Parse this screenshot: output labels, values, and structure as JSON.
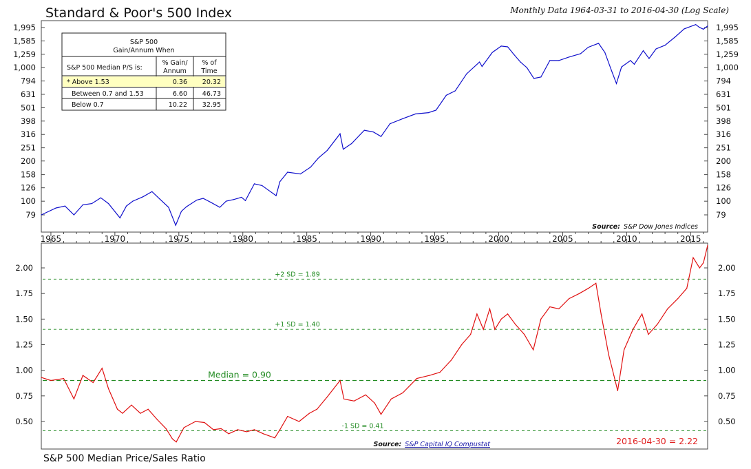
{
  "header": {
    "title": "Standard & Poor's 500 Index",
    "subtitle": "Monthly Data 1964-03-31 to 2016-04-30 (Log Scale)"
  },
  "table": {
    "title_line1": "S&P 500",
    "title_line2": "Gain/Annum When",
    "row_header": "S&P 500 Median P/S is:",
    "col1_line1": "% Gain/",
    "col1_line2": "Annum",
    "col2_line1": "% of",
    "col2_line2": "Time",
    "rows": [
      {
        "label": "* Above 1.53",
        "gain": "0.36",
        "time": "20.32",
        "highlight_color": "#ffffc0"
      },
      {
        "label": "Between 0.7 and 1.53",
        "gain": "6.60",
        "time": "46.73",
        "highlight_color": ""
      },
      {
        "label": "Below 0.7",
        "gain": "10.22",
        "time": "32.95",
        "highlight_color": ""
      }
    ]
  },
  "top_source": {
    "prefix": "Source:",
    "text": "S&P Dow Jones Indices"
  },
  "bottom_source": {
    "prefix": "Source:",
    "text": "S&P Capital IQ Compustat"
  },
  "bottom_title": "S&P 500 Median Price/Sales Ratio",
  "colors": {
    "sp_line": "#1010cc",
    "ratio_line": "#e01010",
    "sd_lines": "#228b22"
  },
  "chart_data": [
    {
      "type": "line",
      "title": "Standard & Poor's 500 Index",
      "scale": "log",
      "ytick_labels": [
        "1,995",
        "1,585",
        "1,259",
        "1,000",
        "794",
        "631",
        "501",
        "398",
        "316",
        "251",
        "200",
        "158",
        "126",
        "100",
        "79"
      ],
      "ytick_values": [
        1995,
        1585,
        1259,
        1000,
        794,
        631,
        501,
        398,
        316,
        251,
        200,
        158,
        126,
        100,
        79
      ],
      "xtick_labels": [
        "1965",
        "1970",
        "1975",
        "1980",
        "1985",
        "1990",
        "1995",
        "2000",
        "2005",
        "2010",
        "2015"
      ],
      "xlim": [
        1964.25,
        2016.33
      ],
      "series": [
        {
          "x": [
            1964.25,
            1965.4,
            1966.1,
            1966.8,
            1967.5,
            1968.2,
            1968.9,
            1969.5,
            1970.4,
            1970.9,
            1971.4,
            1972.2,
            1972.9,
            1973.5,
            1974.2,
            1974.75,
            1975.2,
            1975.6,
            1976.4,
            1976.9,
            1977.5,
            1978.2,
            1978.7,
            1979.3,
            1979.9,
            1980.2,
            1980.9,
            1981.5,
            1982.6,
            1982.9,
            1983.5,
            1984.5,
            1985.3,
            1985.9,
            1986.6,
            1987.6,
            1987.85,
            1988.5,
            1989.5,
            1990.2,
            1990.8,
            1991.5,
            1992.5,
            1993.5,
            1994.5,
            1995.1,
            1995.9,
            1996.6,
            1997.5,
            1998.5,
            1998.7,
            1999.5,
            2000.2,
            2000.7,
            2001.2,
            2001.7,
            2002.2,
            2002.75,
            2003.3,
            2004.0,
            2004.7,
            2005.5,
            2006.4,
            2007.0,
            2007.8,
            2008.3,
            2008.8,
            2009.2,
            2009.6,
            2010.3,
            2010.6,
            2011.3,
            2011.75,
            2012.3,
            2013.0,
            2013.8,
            2014.5,
            2015.4,
            2015.7,
            2016.0,
            2016.33
          ],
          "y": [
            79,
            89,
            92,
            79,
            94,
            96,
            106,
            96,
            75,
            92,
            100,
            108,
            118,
            104,
            90,
            66,
            84,
            91,
            102,
            105,
            98,
            90,
            100,
            103,
            107,
            101,
            135,
            131,
            110,
            140,
            165,
            160,
            180,
            210,
            240,
            320,
            245,
            270,
            340,
            330,
            305,
            380,
            415,
            450,
            460,
            480,
            620,
            670,
            900,
            1100,
            1020,
            1300,
            1450,
            1430,
            1250,
            1100,
            1000,
            830,
            850,
            1130,
            1130,
            1200,
            1270,
            1420,
            1520,
            1300,
            960,
            760,
            1010,
            1130,
            1060,
            1340,
            1170,
            1380,
            1470,
            1700,
            1950,
            2100,
            2000,
            1940,
            2050
          ]
        }
      ]
    },
    {
      "type": "line",
      "title": "S&P 500 Median Price/Sales Ratio",
      "ytick_labels": [
        "2.00",
        "1.75",
        "1.50",
        "1.25",
        "1.00",
        "0.75",
        "0.50"
      ],
      "ytick_values": [
        2.0,
        1.75,
        1.5,
        1.25,
        1.0,
        0.75,
        0.5
      ],
      "xlim": [
        1964.25,
        2016.33
      ],
      "reference_lines": [
        {
          "label": "+2 SD = 1.89",
          "value": 1.89
        },
        {
          "label": "+1 SD = 1.40",
          "value": 1.4
        },
        {
          "label": "Median = 0.90",
          "value": 0.9
        },
        {
          "label": "-1 SD = 0.41",
          "value": 0.41
        }
      ],
      "annotation": "2016-04-30 = 2.22",
      "series": [
        {
          "x": [
            1964.25,
            1965.0,
            1966.0,
            1966.8,
            1967.5,
            1968.3,
            1969.0,
            1969.5,
            1970.2,
            1970.6,
            1971.3,
            1972.0,
            1972.6,
            1973.3,
            1974.0,
            1974.5,
            1974.8,
            1975.4,
            1976.3,
            1977.0,
            1977.7,
            1978.3,
            1978.9,
            1979.6,
            1980.3,
            1980.9,
            1981.6,
            1982.5,
            1982.9,
            1983.5,
            1984.4,
            1985.2,
            1985.8,
            1986.6,
            1987.6,
            1987.9,
            1988.7,
            1989.6,
            1990.3,
            1990.8,
            1991.6,
            1992.5,
            1993.6,
            1994.6,
            1995.4,
            1996.3,
            1997.1,
            1997.8,
            1998.3,
            1998.8,
            1999.3,
            1999.7,
            2000.2,
            2000.7,
            2001.3,
            2002.0,
            2002.7,
            2003.3,
            2004.0,
            2004.7,
            2005.5,
            2006.3,
            2007.0,
            2007.6,
            2008.0,
            2008.6,
            2009.0,
            2009.3,
            2009.8,
            2010.5,
            2011.2,
            2011.7,
            2012.4,
            2013.2,
            2014.0,
            2014.7,
            2015.2,
            2015.7,
            2016.0,
            2016.33
          ],
          "y": [
            0.93,
            0.9,
            0.92,
            0.72,
            0.95,
            0.88,
            1.02,
            0.82,
            0.62,
            0.58,
            0.66,
            0.58,
            0.62,
            0.52,
            0.43,
            0.33,
            0.3,
            0.44,
            0.5,
            0.49,
            0.42,
            0.43,
            0.38,
            0.42,
            0.4,
            0.42,
            0.38,
            0.34,
            0.42,
            0.55,
            0.5,
            0.58,
            0.62,
            0.74,
            0.9,
            0.72,
            0.7,
            0.76,
            0.68,
            0.57,
            0.72,
            0.78,
            0.92,
            0.95,
            0.98,
            1.1,
            1.25,
            1.35,
            1.55,
            1.4,
            1.6,
            1.4,
            1.5,
            1.55,
            1.45,
            1.35,
            1.2,
            1.5,
            1.62,
            1.6,
            1.7,
            1.75,
            1.8,
            1.85,
            1.55,
            1.15,
            0.95,
            0.8,
            1.2,
            1.4,
            1.55,
            1.35,
            1.45,
            1.6,
            1.7,
            1.8,
            2.1,
            2.0,
            2.05,
            2.22
          ]
        }
      ]
    }
  ]
}
